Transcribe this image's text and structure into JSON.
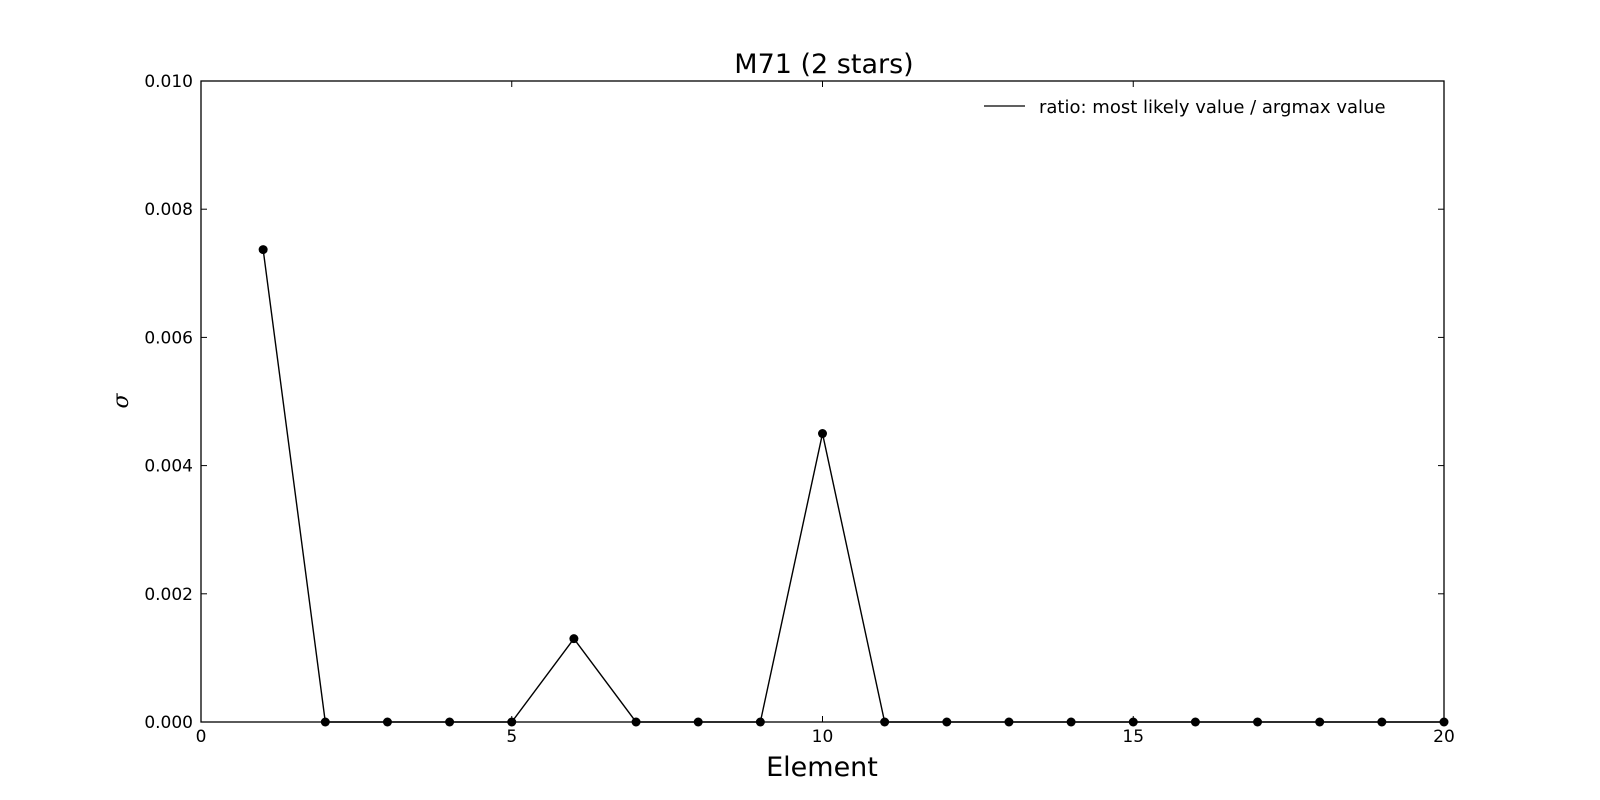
{
  "chart_data": {
    "type": "line",
    "title": "M71 (2 stars)",
    "xlabel": "Element",
    "ylabel": "σ",
    "xlim": [
      0,
      20
    ],
    "ylim": [
      0,
      0.01
    ],
    "xticks": [
      "0",
      "5",
      "10",
      "15",
      "20"
    ],
    "yticks": [
      "0.000",
      "0.002",
      "0.004",
      "0.006",
      "0.008",
      "0.010"
    ],
    "grid": false,
    "legend_position": "top-right",
    "series": [
      {
        "name": "ratio: most likely value / argmax value",
        "color": "#000000",
        "marker": "circle",
        "x": [
          1,
          2,
          3,
          4,
          5,
          6,
          7,
          8,
          9,
          10,
          11,
          12,
          13,
          14,
          15,
          16,
          17,
          18,
          19,
          20
        ],
        "y": [
          0.00737,
          0.0,
          0.0,
          0.0,
          0.0,
          0.0013,
          0.0,
          0.0,
          0.0,
          0.0045,
          0.0,
          0.0,
          0.0,
          0.0,
          0.0,
          0.0,
          0.0,
          0.0,
          0.0,
          0.0
        ]
      }
    ]
  }
}
